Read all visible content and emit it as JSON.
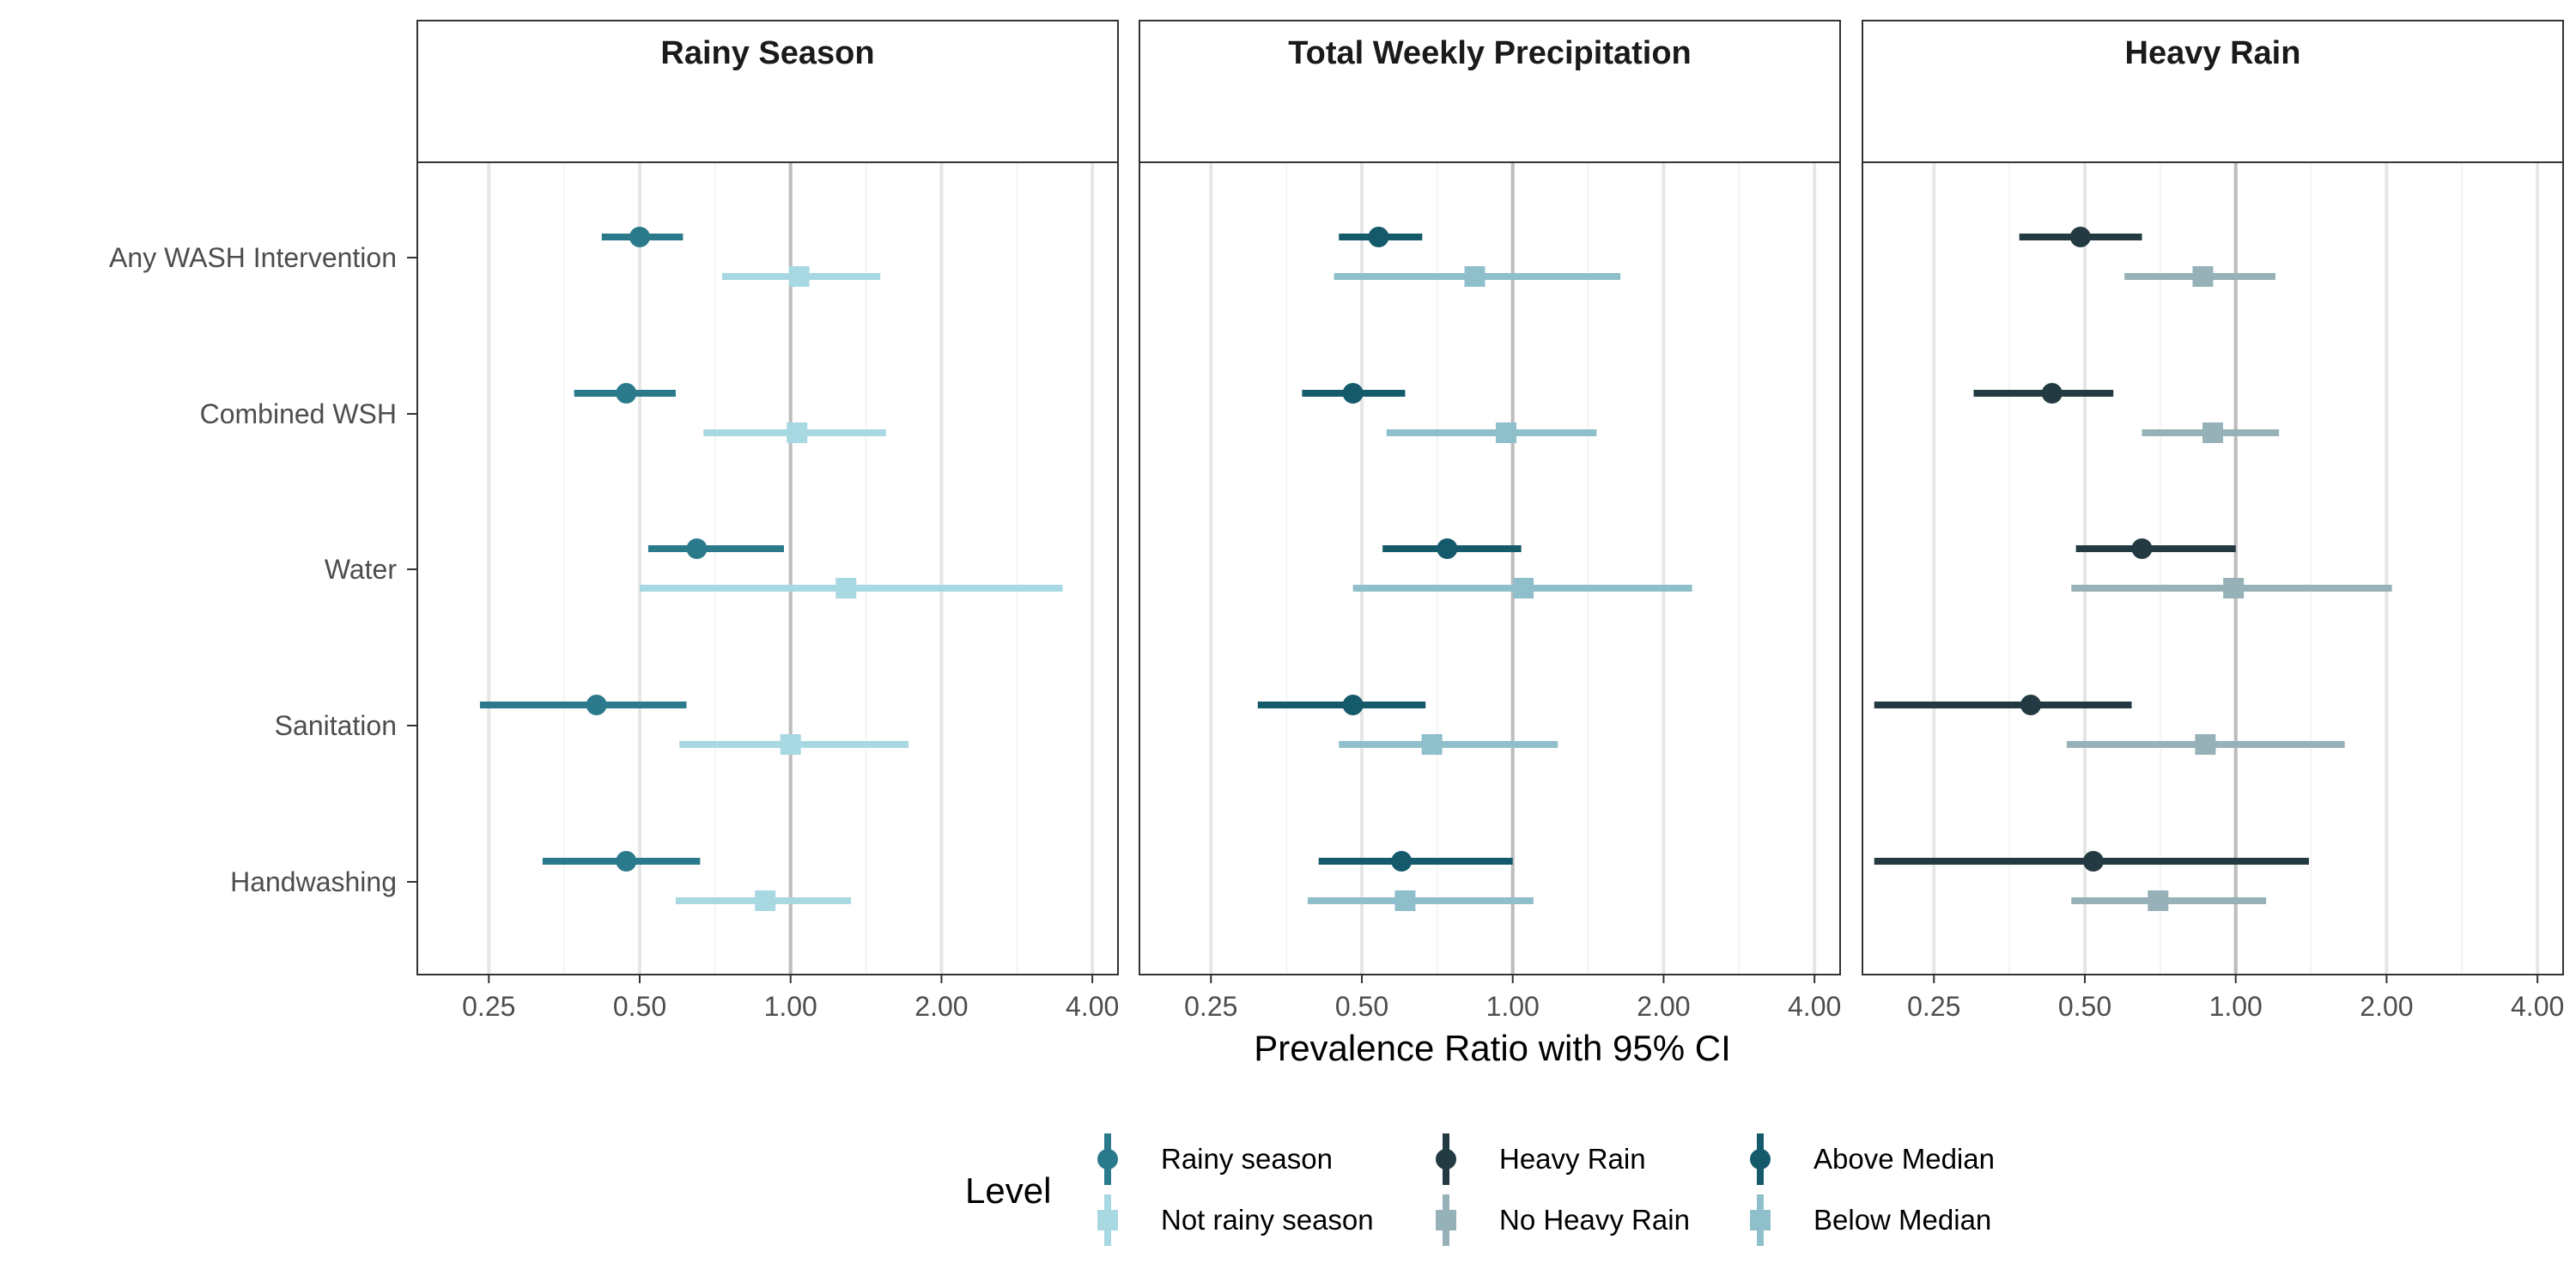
{
  "chart_data": {
    "type": "forest",
    "xlabel": "Prevalence Ratio with 95% CI",
    "x_scale": "log2",
    "xlim": [
      0.18,
      4.5
    ],
    "x_ticks": [
      0.25,
      0.5,
      1.0,
      2.0,
      4.0
    ],
    "x_tick_labels": [
      "0.25",
      "0.50",
      "1.00",
      "2.00",
      "4.00"
    ],
    "reference_line": 1.0,
    "grid": true,
    "categories": [
      "Any WASH Intervention",
      "Combined WSH",
      "Water",
      "Sanitation",
      "Handwashing"
    ],
    "panels": [
      {
        "title": "Rainy Season",
        "series": [
          {
            "name": "Rainy season",
            "marker": "circle",
            "color": "#2b7a8c",
            "points": [
              {
                "estimate": 0.5,
                "lower": 0.42,
                "upper": 0.61
              },
              {
                "estimate": 0.47,
                "lower": 0.37,
                "upper": 0.59
              },
              {
                "estimate": 0.65,
                "lower": 0.52,
                "upper": 0.97
              },
              {
                "estimate": 0.41,
                "lower": 0.24,
                "upper": 0.62
              },
              {
                "estimate": 0.47,
                "lower": 0.32,
                "upper": 0.66
              }
            ]
          },
          {
            "name": "Not rainy season",
            "marker": "square",
            "color": "#a8d8e2",
            "points": [
              {
                "estimate": 1.04,
                "lower": 0.73,
                "upper": 1.51
              },
              {
                "estimate": 1.03,
                "lower": 0.67,
                "upper": 1.55
              },
              {
                "estimate": 1.29,
                "lower": 0.5,
                "upper": 3.49
              },
              {
                "estimate": 1.0,
                "lower": 0.6,
                "upper": 1.72
              },
              {
                "estimate": 0.89,
                "lower": 0.59,
                "upper": 1.32
              }
            ]
          }
        ]
      },
      {
        "title": "Total Weekly Precipitation",
        "series": [
          {
            "name": "Above Median",
            "marker": "circle",
            "color": "#145a6b",
            "points": [
              {
                "estimate": 0.54,
                "lower": 0.45,
                "upper": 0.66
              },
              {
                "estimate": 0.48,
                "lower": 0.38,
                "upper": 0.61
              },
              {
                "estimate": 0.74,
                "lower": 0.55,
                "upper": 1.04
              },
              {
                "estimate": 0.48,
                "lower": 0.31,
                "upper": 0.67
              },
              {
                "estimate": 0.6,
                "lower": 0.41,
                "upper": 1.0
              }
            ]
          },
          {
            "name": "Below Median",
            "marker": "square",
            "color": "#8fbfca",
            "points": [
              {
                "estimate": 0.84,
                "lower": 0.44,
                "upper": 1.64
              },
              {
                "estimate": 0.97,
                "lower": 0.56,
                "upper": 1.47
              },
              {
                "estimate": 1.05,
                "lower": 0.48,
                "upper": 2.28
              },
              {
                "estimate": 0.69,
                "lower": 0.45,
                "upper": 1.23
              },
              {
                "estimate": 0.61,
                "lower": 0.39,
                "upper": 1.1
              }
            ]
          }
        ]
      },
      {
        "title": "Heavy Rain",
        "series": [
          {
            "name": "Heavy Rain",
            "marker": "circle",
            "color": "#233a42",
            "points": [
              {
                "estimate": 0.49,
                "lower": 0.37,
                "upper": 0.65
              },
              {
                "estimate": 0.43,
                "lower": 0.3,
                "upper": 0.57
              },
              {
                "estimate": 0.65,
                "lower": 0.48,
                "upper": 1.0
              },
              {
                "estimate": 0.39,
                "lower": 0.19,
                "upper": 0.62
              },
              {
                "estimate": 0.52,
                "lower": 0.19,
                "upper": 1.4
              }
            ]
          },
          {
            "name": "No Heavy Rain",
            "marker": "square",
            "color": "#96b1b8",
            "points": [
              {
                "estimate": 0.86,
                "lower": 0.6,
                "upper": 1.2
              },
              {
                "estimate": 0.9,
                "lower": 0.65,
                "upper": 1.22
              },
              {
                "estimate": 0.99,
                "lower": 0.47,
                "upper": 2.05
              },
              {
                "estimate": 0.87,
                "lower": 0.46,
                "upper": 1.65
              },
              {
                "estimate": 0.7,
                "lower": 0.47,
                "upper": 1.15
              }
            ]
          }
        ]
      }
    ],
    "legend": {
      "title": "Level",
      "position": "bottom",
      "columns": [
        [
          {
            "label": "Rainy season",
            "marker": "circle",
            "color": "#2b7a8c"
          },
          {
            "label": "Not rainy season",
            "marker": "square",
            "color": "#a8d8e2"
          }
        ],
        [
          {
            "label": "Heavy Rain",
            "marker": "circle",
            "color": "#233a42"
          },
          {
            "label": "No Heavy Rain",
            "marker": "square",
            "color": "#96b1b8"
          }
        ],
        [
          {
            "label": "Above Median",
            "marker": "circle",
            "color": "#145a6b"
          },
          {
            "label": "Below Median",
            "marker": "square",
            "color": "#8fbfca"
          }
        ]
      ]
    }
  }
}
